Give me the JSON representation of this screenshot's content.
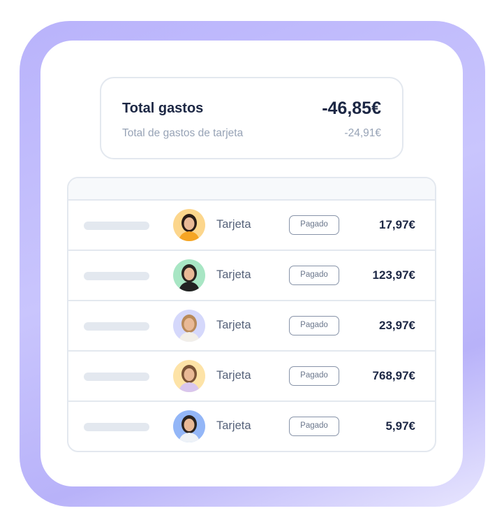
{
  "summary": {
    "title": "Total gastos",
    "total": "-46,85€",
    "subtitle": "Total de gastos de tarjeta",
    "subtotal": "-24,91€"
  },
  "colors": {
    "frame": "#b9b3fb",
    "text_dark": "#1c2744",
    "text_muted": "#97a3b6",
    "border": "#e3e8ef"
  },
  "rows": [
    {
      "method": "Tarjeta",
      "status": "Pagado",
      "amount": "17,97€",
      "avatar_bg": "#fcd68c",
      "hair": "#2a1c16",
      "shirt": "#f5a524"
    },
    {
      "method": "Tarjeta",
      "status": "Pagado",
      "amount": "123,97€",
      "avatar_bg": "#a8e6c4",
      "hair": "#2a2420",
      "shirt": "#222222"
    },
    {
      "method": "Tarjeta",
      "status": "Pagado",
      "amount": "23,97€",
      "avatar_bg": "#d5d8fb",
      "hair": "#b98a5a",
      "shirt": "#f2efe9"
    },
    {
      "method": "Tarjeta",
      "status": "Pagado",
      "amount": "768,97€",
      "avatar_bg": "#fde3a7",
      "hair": "#7a5336",
      "shirt": "#d9c6ee"
    },
    {
      "method": "Tarjeta",
      "status": "Pagado",
      "amount": "5,97€",
      "avatar_bg": "#93b6f7",
      "hair": "#2b2420",
      "shirt": "#eef2f7"
    }
  ]
}
